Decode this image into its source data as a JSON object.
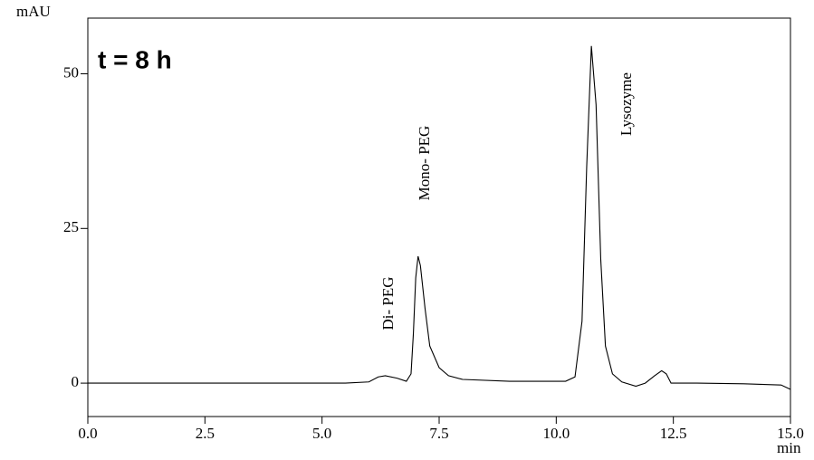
{
  "chart_data": {
    "type": "line",
    "title": "t = 8 h",
    "y_label": "mAU",
    "x_label": "min",
    "annotations": [
      "Di- PEG",
      "Mono- PEG",
      "Lysozyme"
    ],
    "x": [
      0,
      5.5,
      6.0,
      6.2,
      6.35,
      6.6,
      6.8,
      6.9,
      6.95,
      7.0,
      7.05,
      7.1,
      7.2,
      7.3,
      7.5,
      7.7,
      8.0,
      9.0,
      10.2,
      10.4,
      10.55,
      10.65,
      10.75,
      10.85,
      10.95,
      11.05,
      11.2,
      11.4,
      11.7,
      11.9,
      12.1,
      12.25,
      12.35,
      12.45,
      13.0,
      14.0,
      14.8,
      15.0
    ],
    "series": [
      {
        "color": "#000000",
        "values": [
          0,
          0,
          0.2,
          1.0,
          1.2,
          0.8,
          0.3,
          1.5,
          8,
          17,
          20.5,
          19,
          12,
          6,
          2.5,
          1.2,
          0.6,
          0.3,
          0.3,
          1,
          10,
          35,
          54.5,
          45,
          20,
          6,
          1.5,
          0.2,
          -0.5,
          0,
          1.2,
          2,
          1.5,
          0,
          0,
          -0.1,
          -0.3,
          -1
        ]
      }
    ],
    "xlim": [
      0,
      15
    ],
    "ylim": [
      -5.4,
      59
    ],
    "xticks": [
      {
        "value": 0,
        "label": "0.0"
      },
      {
        "value": 2.5,
        "label": "2.5"
      },
      {
        "value": 5,
        "label": "5.0"
      },
      {
        "value": 7.5,
        "label": "7.5"
      },
      {
        "value": 10,
        "label": "10.0"
      },
      {
        "value": 12.5,
        "label": "12.5"
      },
      {
        "value": 15,
        "label": "15.0"
      }
    ],
    "yticks": [
      0,
      25,
      50
    ],
    "annotation_color": "#e8401c",
    "title_color": "#1a5ee8"
  }
}
